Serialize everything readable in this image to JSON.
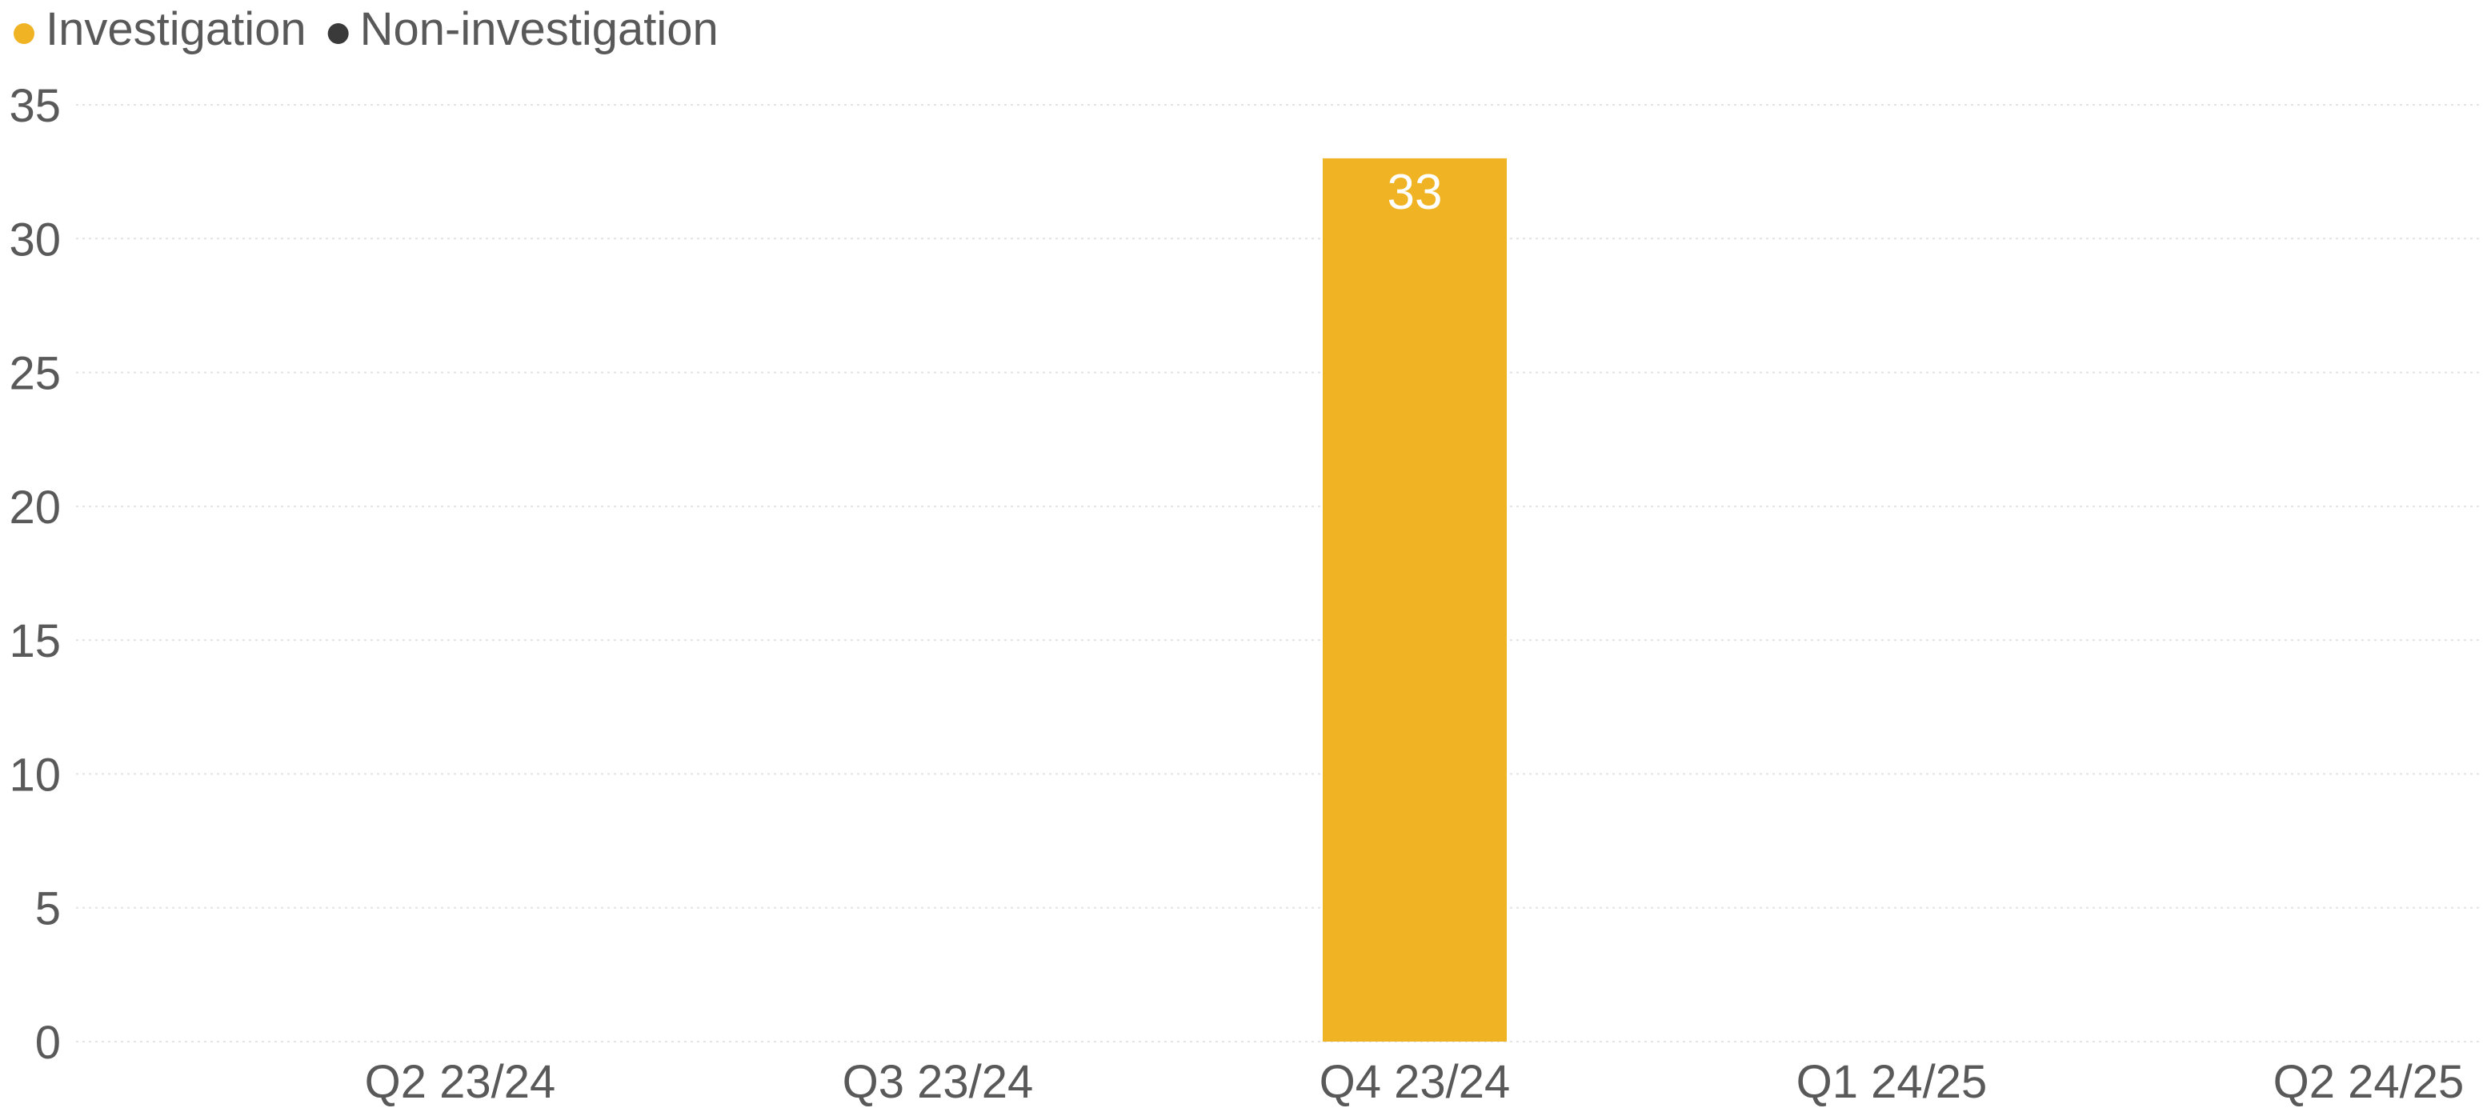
{
  "chart_data": {
    "type": "bar",
    "categories": [
      "Q2 23/24",
      "Q3 23/24",
      "Q4 23/24",
      "Q1 24/25",
      "Q2 24/25"
    ],
    "series": [
      {
        "name": "Investigation",
        "color": "#EFB323",
        "values": [
          0,
          0,
          33,
          0,
          0
        ]
      },
      {
        "name": "Non-investigation",
        "color": "#3A3A3A",
        "values": [
          0,
          0,
          0,
          0,
          0
        ]
      }
    ],
    "data_labels": [
      "",
      "",
      "33",
      "",
      ""
    ],
    "ylim": [
      0,
      35
    ],
    "yticks": [
      0,
      5,
      10,
      15,
      20,
      25,
      30,
      35
    ],
    "legend_position": "top-left",
    "grid": "horizontal dotted"
  }
}
